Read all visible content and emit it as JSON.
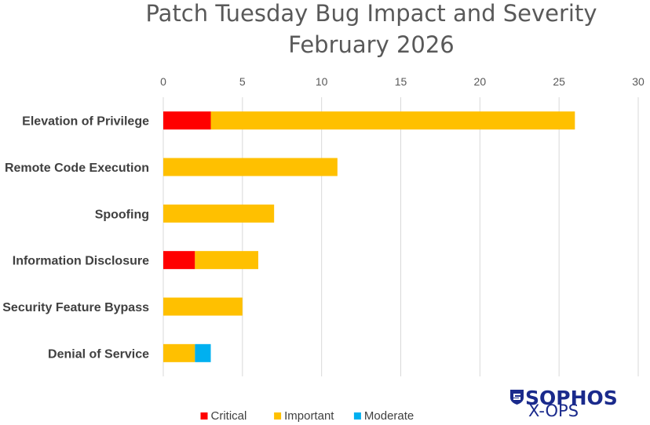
{
  "chart_data": {
    "type": "bar",
    "orientation": "horizontal",
    "stacked": true,
    "title": [
      "Patch Tuesday Bug Impact and Severity",
      "February 2026"
    ],
    "categories": [
      "Elevation of Privilege",
      "Remote Code Execution",
      "Spoofing",
      "Information Disclosure",
      "Security Feature Bypass",
      "Denial of Service"
    ],
    "series": [
      {
        "name": "Critical",
        "color": "#ff0000",
        "values": [
          3,
          0,
          0,
          2,
          0,
          0
        ]
      },
      {
        "name": "Important",
        "color": "#ffc000",
        "values": [
          23,
          11,
          7,
          4,
          5,
          2
        ]
      },
      {
        "name": "Moderate",
        "color": "#00b0f0",
        "values": [
          0,
          0,
          0,
          0,
          0,
          1
        ]
      }
    ],
    "xlim": [
      0,
      30
    ],
    "xticks": [
      "0",
      "5",
      "10",
      "15",
      "20",
      "25",
      "30"
    ],
    "xaxis_position": "top",
    "grid": true,
    "legend": "bottom-center"
  },
  "branding": {
    "logo_name": "SOPHOS",
    "logo_sub": "X-OPS",
    "logo_icon": "sophos-shield-icon",
    "logo_color": "#1a2a8c"
  }
}
